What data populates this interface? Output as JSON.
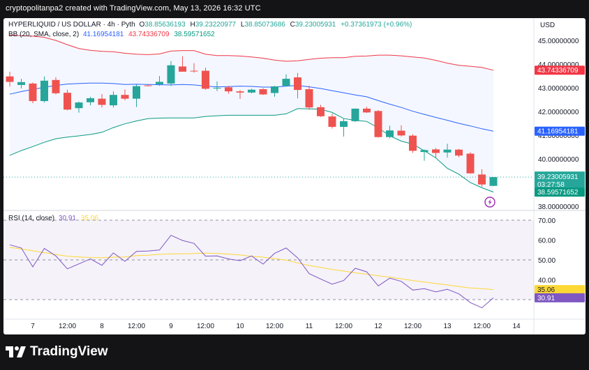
{
  "header": {
    "text": "cryptopolitanpa2 created with TradingView.com, May 13, 2026 16:32 UTC"
  },
  "brand": {
    "name": "TradingView"
  },
  "legend": {
    "symbol": "HYPERLIQUID / US DOLLAR · 4h · Pyth",
    "open_label": "O",
    "open": "38.85636193",
    "high_label": "H",
    "high": "39.23220977",
    "low_label": "L",
    "low": "38.85073686",
    "close_label": "C",
    "close": "39.23005931",
    "change": "+0.37361973 (+0.96%)",
    "bb_label": "BB (20, SMA, close, 2)",
    "bb_basis": "41.16954181",
    "bb_upper": "43.74336709",
    "bb_lower": "38.59571652",
    "rsi_label": "RSI (14, close)",
    "rsi_value": "30.91",
    "rsi_ma": "35.06"
  },
  "price_axis": {
    "currency": "USD",
    "ticks": [
      "45.00000000",
      "44.00000000",
      "43.00000000",
      "42.00000000",
      "41.00000000",
      "40.00000000",
      "38.00000000"
    ],
    "countdown": "03:27:58"
  },
  "rsi_axis": {
    "ticks": [
      "70.00",
      "60.00",
      "50.00",
      "40.00"
    ]
  },
  "time_axis": {
    "ticks": [
      "7",
      "12:00",
      "8",
      "12:00",
      "9",
      "12:00",
      "10",
      "12:00",
      "11",
      "12:00",
      "12",
      "12:00",
      "13",
      "12:00",
      "14"
    ]
  },
  "colors": {
    "up": "#26a69a",
    "down": "#ef5350",
    "bb_upper": "#f23645",
    "bb_basis": "#2962ff",
    "bb_lower": "#089981",
    "bb_fill": "#2962ff",
    "rsi": "#7e57c2",
    "rsi_ma": "#fdd835",
    "rsi_band": "#7e57c2"
  },
  "chart_data": [
    {
      "type": "candlestick",
      "title": "HYPERLIQUID / US DOLLAR · 4h · Pyth",
      "ylabel": "USD",
      "ylim": [
        37.9,
        45.5
      ],
      "candles": [
        {
          "o": 43.48,
          "h": 43.68,
          "l": 43.05,
          "c": 43.25
        },
        {
          "o": 43.12,
          "h": 43.38,
          "l": 42.97,
          "c": 43.24
        },
        {
          "o": 43.18,
          "h": 43.22,
          "l": 42.35,
          "c": 42.44
        },
        {
          "o": 42.44,
          "h": 43.48,
          "l": 42.38,
          "c": 43.3
        },
        {
          "o": 43.33,
          "h": 43.45,
          "l": 42.72,
          "c": 42.77
        },
        {
          "o": 42.79,
          "h": 42.92,
          "l": 42.05,
          "c": 42.08
        },
        {
          "o": 42.14,
          "h": 42.42,
          "l": 41.95,
          "c": 42.38
        },
        {
          "o": 42.39,
          "h": 42.62,
          "l": 42.26,
          "c": 42.56
        },
        {
          "o": 42.54,
          "h": 42.74,
          "l": 42.17,
          "c": 42.28
        },
        {
          "o": 42.26,
          "h": 42.85,
          "l": 42.17,
          "c": 42.7
        },
        {
          "o": 42.7,
          "h": 42.93,
          "l": 42.47,
          "c": 42.54
        },
        {
          "o": 42.54,
          "h": 43.13,
          "l": 42.19,
          "c": 43.07
        },
        {
          "o": 43.1,
          "h": 43.14,
          "l": 43.06,
          "c": 43.08
        },
        {
          "o": 43.15,
          "h": 43.5,
          "l": 43.08,
          "c": 43.25
        },
        {
          "o": 43.18,
          "h": 44.13,
          "l": 43.08,
          "c": 43.95
        },
        {
          "o": 43.9,
          "h": 44.33,
          "l": 43.7,
          "c": 43.68
        },
        {
          "o": 43.72,
          "h": 44.04,
          "l": 43.64,
          "c": 43.7
        },
        {
          "o": 43.72,
          "h": 43.85,
          "l": 42.92,
          "c": 42.96
        },
        {
          "o": 43.0,
          "h": 43.27,
          "l": 42.86,
          "c": 43.0
        },
        {
          "o": 43.02,
          "h": 43.08,
          "l": 42.75,
          "c": 42.85
        },
        {
          "o": 42.85,
          "h": 42.9,
          "l": 42.53,
          "c": 42.8
        },
        {
          "o": 42.8,
          "h": 42.96,
          "l": 42.76,
          "c": 42.92
        },
        {
          "o": 42.94,
          "h": 42.98,
          "l": 42.7,
          "c": 42.72
        },
        {
          "o": 42.78,
          "h": 43.08,
          "l": 42.62,
          "c": 43.06
        },
        {
          "o": 43.08,
          "h": 43.57,
          "l": 43.05,
          "c": 43.38
        },
        {
          "o": 43.44,
          "h": 43.63,
          "l": 42.55,
          "c": 42.91
        },
        {
          "o": 42.94,
          "h": 43.08,
          "l": 42.07,
          "c": 42.17
        },
        {
          "o": 42.18,
          "h": 42.28,
          "l": 41.77,
          "c": 41.8
        },
        {
          "o": 41.79,
          "h": 41.91,
          "l": 41.28,
          "c": 41.35
        },
        {
          "o": 41.35,
          "h": 41.7,
          "l": 40.94,
          "c": 41.59
        },
        {
          "o": 41.59,
          "h": 42.13,
          "l": 41.55,
          "c": 42.12
        },
        {
          "o": 42.12,
          "h": 42.2,
          "l": 41.94,
          "c": 41.96
        },
        {
          "o": 42.02,
          "h": 42.06,
          "l": 40.9,
          "c": 40.92
        },
        {
          "o": 40.92,
          "h": 41.4,
          "l": 40.87,
          "c": 41.2
        },
        {
          "o": 41.19,
          "h": 41.42,
          "l": 40.94,
          "c": 40.99
        },
        {
          "o": 40.98,
          "h": 41.04,
          "l": 40.25,
          "c": 40.34
        },
        {
          "o": 40.29,
          "h": 40.4,
          "l": 39.92,
          "c": 40.37
        },
        {
          "o": 40.4,
          "h": 40.46,
          "l": 40.06,
          "c": 40.25
        },
        {
          "o": 40.27,
          "h": 40.64,
          "l": 40.05,
          "c": 40.39
        },
        {
          "o": 40.39,
          "h": 40.42,
          "l": 40.07,
          "c": 40.14
        },
        {
          "o": 40.22,
          "h": 40.28,
          "l": 39.37,
          "c": 39.39
        },
        {
          "o": 39.34,
          "h": 39.56,
          "l": 38.82,
          "c": 38.92
        },
        {
          "o": 38.86,
          "h": 39.23,
          "l": 38.85,
          "c": 39.23
        }
      ],
      "bb_upper": [
        45.23,
        45.2,
        45.18,
        45.13,
        45.0,
        44.82,
        44.66,
        44.58,
        44.54,
        44.52,
        44.46,
        44.42,
        44.4,
        44.43,
        44.55,
        44.57,
        44.57,
        44.42,
        44.36,
        44.36,
        44.34,
        44.3,
        44.25,
        44.17,
        44.12,
        44.14,
        44.2,
        44.25,
        44.27,
        44.27,
        44.33,
        44.34,
        44.38,
        44.38,
        44.35,
        44.3,
        44.26,
        44.16,
        44.04,
        43.95,
        43.91,
        43.86,
        43.74
      ],
      "bb_basis": [
        42.73,
        42.84,
        42.93,
        43.02,
        43.1,
        43.16,
        43.18,
        43.2,
        43.2,
        43.18,
        43.14,
        43.15,
        43.14,
        43.13,
        43.12,
        43.14,
        43.12,
        43.07,
        43.04,
        43.05,
        43.07,
        43.06,
        43.03,
        43.03,
        43.07,
        43.1,
        43.04,
        42.97,
        42.88,
        42.79,
        42.7,
        42.62,
        42.46,
        42.31,
        42.17,
        42.01,
        41.88,
        41.75,
        41.63,
        41.5,
        41.39,
        41.27,
        41.17
      ],
      "bb_lower": [
        40.15,
        40.35,
        40.52,
        40.7,
        40.85,
        40.92,
        40.97,
        41.03,
        41.12,
        41.32,
        41.48,
        41.6,
        41.7,
        41.72,
        41.73,
        41.73,
        41.73,
        41.79,
        41.82,
        41.84,
        41.84,
        41.84,
        41.84,
        41.84,
        41.9,
        42.12,
        42.11,
        42.09,
        41.96,
        41.7,
        41.63,
        41.58,
        41.31,
        40.97,
        40.75,
        40.62,
        40.34,
        40.04,
        39.6,
        39.35,
        39.0,
        38.78,
        38.6
      ]
    },
    {
      "type": "line",
      "title": "RSI (14, close)",
      "ylim": [
        28,
        72
      ],
      "bands": [
        70,
        50,
        30
      ],
      "series": [
        {
          "name": "RSI",
          "values": [
            57.6,
            56.0,
            46.5,
            55.8,
            52.0,
            45.5,
            48.0,
            50.5,
            47.3,
            53.5,
            49.3,
            54.3,
            54.5,
            55.0,
            62.4,
            59.8,
            58.3,
            51.9,
            52.0,
            50.5,
            49.6,
            52.0,
            47.9,
            53.3,
            56.0,
            51.0,
            43.1,
            40.4,
            37.8,
            39.6,
            45.8,
            44.0,
            36.9,
            40.8,
            39.2,
            34.8,
            35.5,
            33.9,
            35.2,
            32.9,
            28.5,
            25.9,
            30.9
          ]
        },
        {
          "name": "MA",
          "values": [
            56.3,
            55.5,
            54.6,
            53.7,
            52.7,
            51.9,
            51.5,
            51.2,
            51.1,
            51.4,
            51.5,
            52.2,
            52.4,
            52.8,
            53.0,
            53.1,
            53.2,
            53.4,
            53.3,
            52.9,
            52.5,
            51.8,
            51.4,
            50.6,
            49.9,
            48.5,
            47.2,
            46.2,
            45.2,
            44.4,
            43.5,
            42.8,
            42.0,
            41.3,
            40.5,
            39.6,
            38.9,
            38.1,
            37.4,
            36.6,
            35.9,
            35.5,
            35.06
          ]
        }
      ]
    }
  ]
}
